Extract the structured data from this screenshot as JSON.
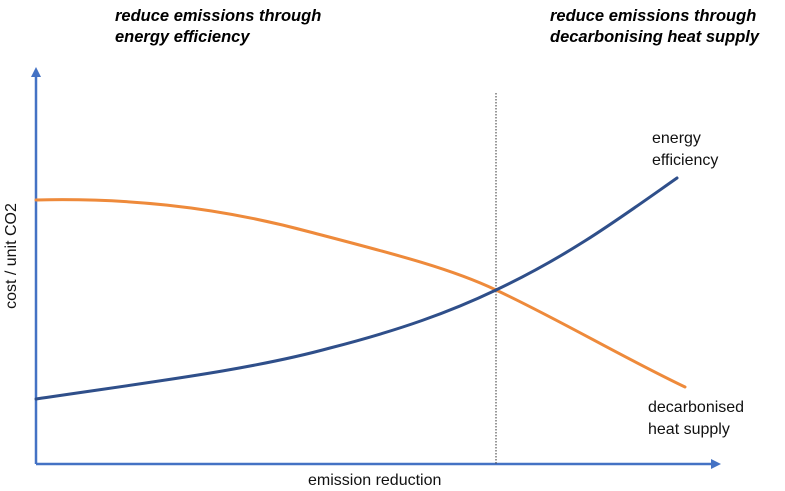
{
  "headings": {
    "left": [
      "reduce emissions through",
      "energy efficiency"
    ],
    "right": [
      "reduce emissions through",
      "decarbonising heat supply"
    ]
  },
  "axes": {
    "x_label": "emission reduction",
    "y_label": "cost / unit CO2"
  },
  "curves": {
    "energy_efficiency": {
      "label": [
        "energy",
        "efficiency"
      ],
      "color": "#2f4f8a"
    },
    "decarbonised_heat_supply": {
      "label": [
        "decarbonised",
        "heat supply"
      ],
      "color": "#ee8a3b"
    }
  },
  "colors": {
    "axis": "#4472c4",
    "divider": "#333333"
  }
}
